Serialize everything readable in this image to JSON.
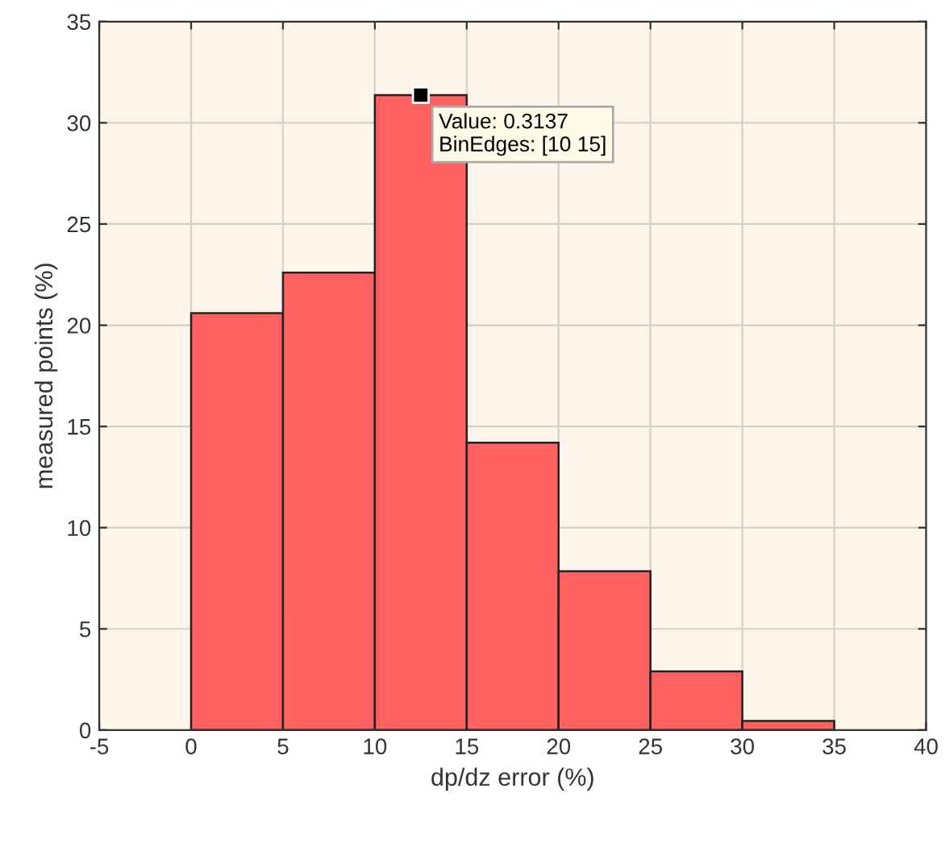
{
  "chart_data": {
    "type": "histogram",
    "xlabel": "dp/dz error (%)",
    "ylabel": "measured points (%)",
    "bins": [
      0,
      5,
      10,
      15,
      20,
      25,
      30,
      35
    ],
    "values": [
      20.6,
      22.6,
      31.37,
      14.2,
      7.85,
      2.9,
      0.45
    ],
    "color": "#ff6060",
    "xlim": [
      -5,
      40
    ],
    "xticks": [
      -5,
      0,
      5,
      10,
      15,
      20,
      25,
      30,
      35,
      40
    ],
    "ylim": [
      0,
      35
    ],
    "yticks": [
      0,
      5,
      10,
      15,
      20,
      25,
      30,
      35
    ],
    "grid": true,
    "annotations": [
      {
        "text": "Value: 0.3137\nBinEdges: [10 15]",
        "x": 12.5,
        "y": 31.37
      }
    ]
  }
}
